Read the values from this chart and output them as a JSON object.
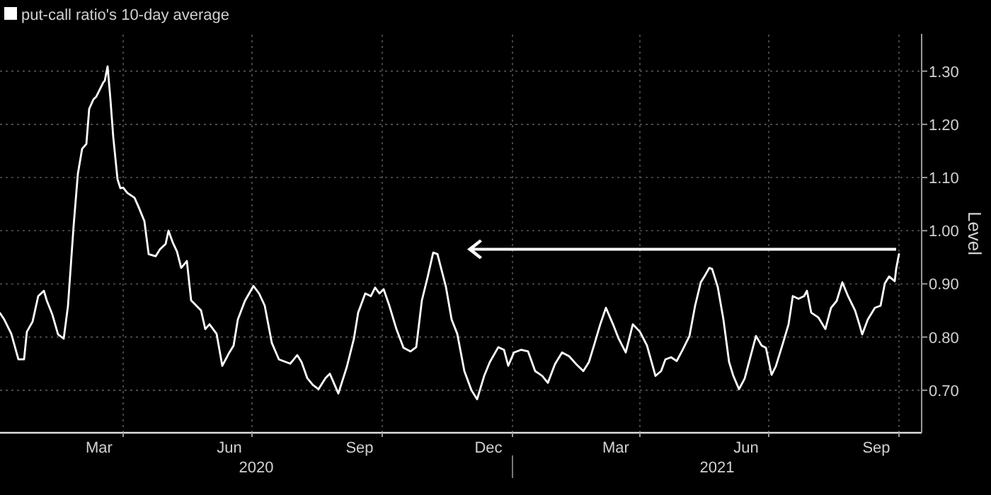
{
  "chart_data": {
    "type": "line",
    "legend": "top left",
    "grid": true,
    "ylabel": "Level",
    "ylim": [
      0.62,
      1.37
    ],
    "yticks": [
      {
        "value": 0.7,
        "label": "0.70"
      },
      {
        "value": 0.8,
        "label": "0.80"
      },
      {
        "value": 0.9,
        "label": "0.90"
      },
      {
        "value": 1.0,
        "label": "1.00"
      },
      {
        "value": 1.1,
        "label": "1.10"
      },
      {
        "value": 1.2,
        "label": "1.20"
      },
      {
        "value": 1.3,
        "label": "1.30"
      }
    ],
    "xlim": [
      "2020-01-05",
      "2021-10-17"
    ],
    "xticks": [
      {
        "value": "2020-03-15",
        "label": "Mar"
      },
      {
        "value": "2020-04-01",
        "label": null
      },
      {
        "value": "2020-06-15",
        "label": "Jun"
      },
      {
        "value": "2020-07-01",
        "label": null
      },
      {
        "value": "2020-09-15",
        "label": "Sep"
      },
      {
        "value": "2020-10-01",
        "label": null
      },
      {
        "value": "2020-12-15",
        "label": "Dec"
      },
      {
        "value": "2021-01-01",
        "label": null
      },
      {
        "value": "2021-03-15",
        "label": "Mar"
      },
      {
        "value": "2021-04-01",
        "label": null
      },
      {
        "value": "2021-06-15",
        "label": "Jun"
      },
      {
        "value": "2021-07-01",
        "label": null
      },
      {
        "value": "2021-09-15",
        "label": "Sep"
      },
      {
        "value": "2021-10-01",
        "label": null
      }
    ],
    "annotations": [
      "2020",
      "2021"
    ],
    "x": [
      "2020-01-05",
      "2020-01-08",
      "2020-01-13",
      "2020-01-18",
      "2020-01-22",
      "2020-01-24",
      "2020-01-28",
      "2020-02-01",
      "2020-02-05",
      "2020-02-07",
      "2020-02-11",
      "2020-02-15",
      "2020-02-19",
      "2020-02-22",
      "2020-02-26",
      "2020-02-29",
      "2020-03-03",
      "2020-03-06",
      "2020-03-08",
      "2020-03-11",
      "2020-03-13",
      "2020-03-18",
      "2020-03-19",
      "2020-03-21",
      "2020-03-23",
      "2020-03-25",
      "2020-03-28",
      "2020-03-30",
      "2020-04-01",
      "2020-04-04",
      "2020-04-09",
      "2020-04-12",
      "2020-04-16",
      "2020-04-19",
      "2020-04-24",
      "2020-04-27",
      "2020-05-01",
      "2020-05-03",
      "2020-05-06",
      "2020-05-09",
      "2020-05-12",
      "2020-05-16",
      "2020-05-19",
      "2020-05-26",
      "2020-05-29",
      "2020-06-01",
      "2020-06-06",
      "2020-06-10",
      "2020-06-15",
      "2020-06-18",
      "2020-06-21",
      "2020-06-26",
      "2020-07-02",
      "2020-07-06",
      "2020-07-10",
      "2020-07-15",
      "2020-07-20",
      "2020-07-25",
      "2020-07-28",
      "2020-08-02",
      "2020-08-05",
      "2020-08-09",
      "2020-08-13",
      "2020-08-17",
      "2020-08-22",
      "2020-08-25",
      "2020-08-31",
      "2020-09-06",
      "2020-09-11",
      "2020-09-14",
      "2020-09-19",
      "2020-09-23",
      "2020-09-26",
      "2020-09-29",
      "2020-10-02",
      "2020-10-06",
      "2020-10-11",
      "2020-10-16",
      "2020-10-21",
      "2020-10-25",
      "2020-10-29",
      "2020-11-02",
      "2020-11-06",
      "2020-11-09",
      "2020-11-12",
      "2020-11-15",
      "2020-11-19",
      "2020-11-23",
      "2020-11-28",
      "2020-12-03",
      "2020-12-07",
      "2020-12-12",
      "2020-12-16",
      "2020-12-22",
      "2020-12-26",
      "2020-12-29",
      "2021-01-02",
      "2021-01-07",
      "2021-01-12",
      "2021-01-17",
      "2021-01-22",
      "2021-01-26",
      "2021-01-31",
      "2021-02-05",
      "2021-02-10",
      "2021-02-15",
      "2021-02-20",
      "2021-02-24",
      "2021-02-28",
      "2021-03-04",
      "2021-03-08",
      "2021-03-13",
      "2021-03-17",
      "2021-03-22",
      "2021-03-27",
      "2021-04-01",
      "2021-04-06",
      "2021-04-12",
      "2021-04-16",
      "2021-04-19",
      "2021-04-23",
      "2021-04-27",
      "2021-05-01",
      "2021-05-06",
      "2021-05-10",
      "2021-05-14",
      "2021-05-17",
      "2021-05-20",
      "2021-05-22",
      "2021-05-26",
      "2021-05-30",
      "2021-06-03",
      "2021-06-06",
      "2021-06-10",
      "2021-06-14",
      "2021-06-18",
      "2021-06-22",
      "2021-06-26",
      "2021-06-29",
      "2021-07-03",
      "2021-07-06",
      "2021-07-11",
      "2021-07-15",
      "2021-07-18",
      "2021-07-22",
      "2021-07-26",
      "2021-07-28",
      "2021-07-31",
      "2021-08-05",
      "2021-08-10",
      "2021-08-14",
      "2021-08-18",
      "2021-08-22",
      "2021-08-26",
      "2021-08-31",
      "2021-09-03",
      "2021-09-05",
      "2021-09-09",
      "2021-09-14",
      "2021-09-18",
      "2021-09-21",
      "2021-09-24",
      "2021-09-28",
      "2021-09-29",
      "2021-10-01"
    ],
    "series": [
      {
        "name": "put-call ratio's 10-day average",
        "color": "#ffffff",
        "values": [
          0.845,
          0.833,
          0.806,
          0.758,
          0.758,
          0.81,
          0.829,
          0.877,
          0.887,
          0.869,
          0.842,
          0.805,
          0.797,
          0.858,
          1.009,
          1.107,
          1.154,
          1.163,
          1.229,
          1.247,
          1.252,
          1.279,
          1.282,
          1.309,
          1.247,
          1.176,
          1.097,
          1.08,
          1.081,
          1.071,
          1.062,
          1.044,
          1.018,
          0.956,
          0.952,
          0.965,
          0.975,
          1.0,
          0.978,
          0.961,
          0.93,
          0.943,
          0.869,
          0.85,
          0.815,
          0.824,
          0.806,
          0.746,
          0.771,
          0.784,
          0.833,
          0.868,
          0.896,
          0.882,
          0.859,
          0.789,
          0.758,
          0.753,
          0.75,
          0.766,
          0.753,
          0.723,
          0.71,
          0.702,
          0.723,
          0.731,
          0.694,
          0.744,
          0.797,
          0.846,
          0.882,
          0.877,
          0.893,
          0.882,
          0.89,
          0.859,
          0.815,
          0.78,
          0.773,
          0.781,
          0.869,
          0.912,
          0.959,
          0.956,
          0.925,
          0.894,
          0.833,
          0.806,
          0.736,
          0.7,
          0.683,
          0.727,
          0.753,
          0.781,
          0.776,
          0.746,
          0.771,
          0.776,
          0.773,
          0.736,
          0.727,
          0.714,
          0.749,
          0.771,
          0.764,
          0.749,
          0.736,
          0.753,
          0.788,
          0.824,
          0.855,
          0.824,
          0.797,
          0.771,
          0.824,
          0.81,
          0.784,
          0.727,
          0.736,
          0.758,
          0.762,
          0.755,
          0.775,
          0.802,
          0.859,
          0.903,
          0.916,
          0.93,
          0.928,
          0.894,
          0.833,
          0.753,
          0.727,
          0.702,
          0.722,
          0.762,
          0.802,
          0.784,
          0.78,
          0.729,
          0.745,
          0.788,
          0.824,
          0.877,
          0.872,
          0.877,
          0.887,
          0.846,
          0.837,
          0.815,
          0.855,
          0.868,
          0.903,
          0.877,
          0.85,
          0.824,
          0.805,
          0.833,
          0.855,
          0.859,
          0.901,
          0.914,
          0.905,
          0.928,
          0.956
        ]
      }
    ]
  }
}
